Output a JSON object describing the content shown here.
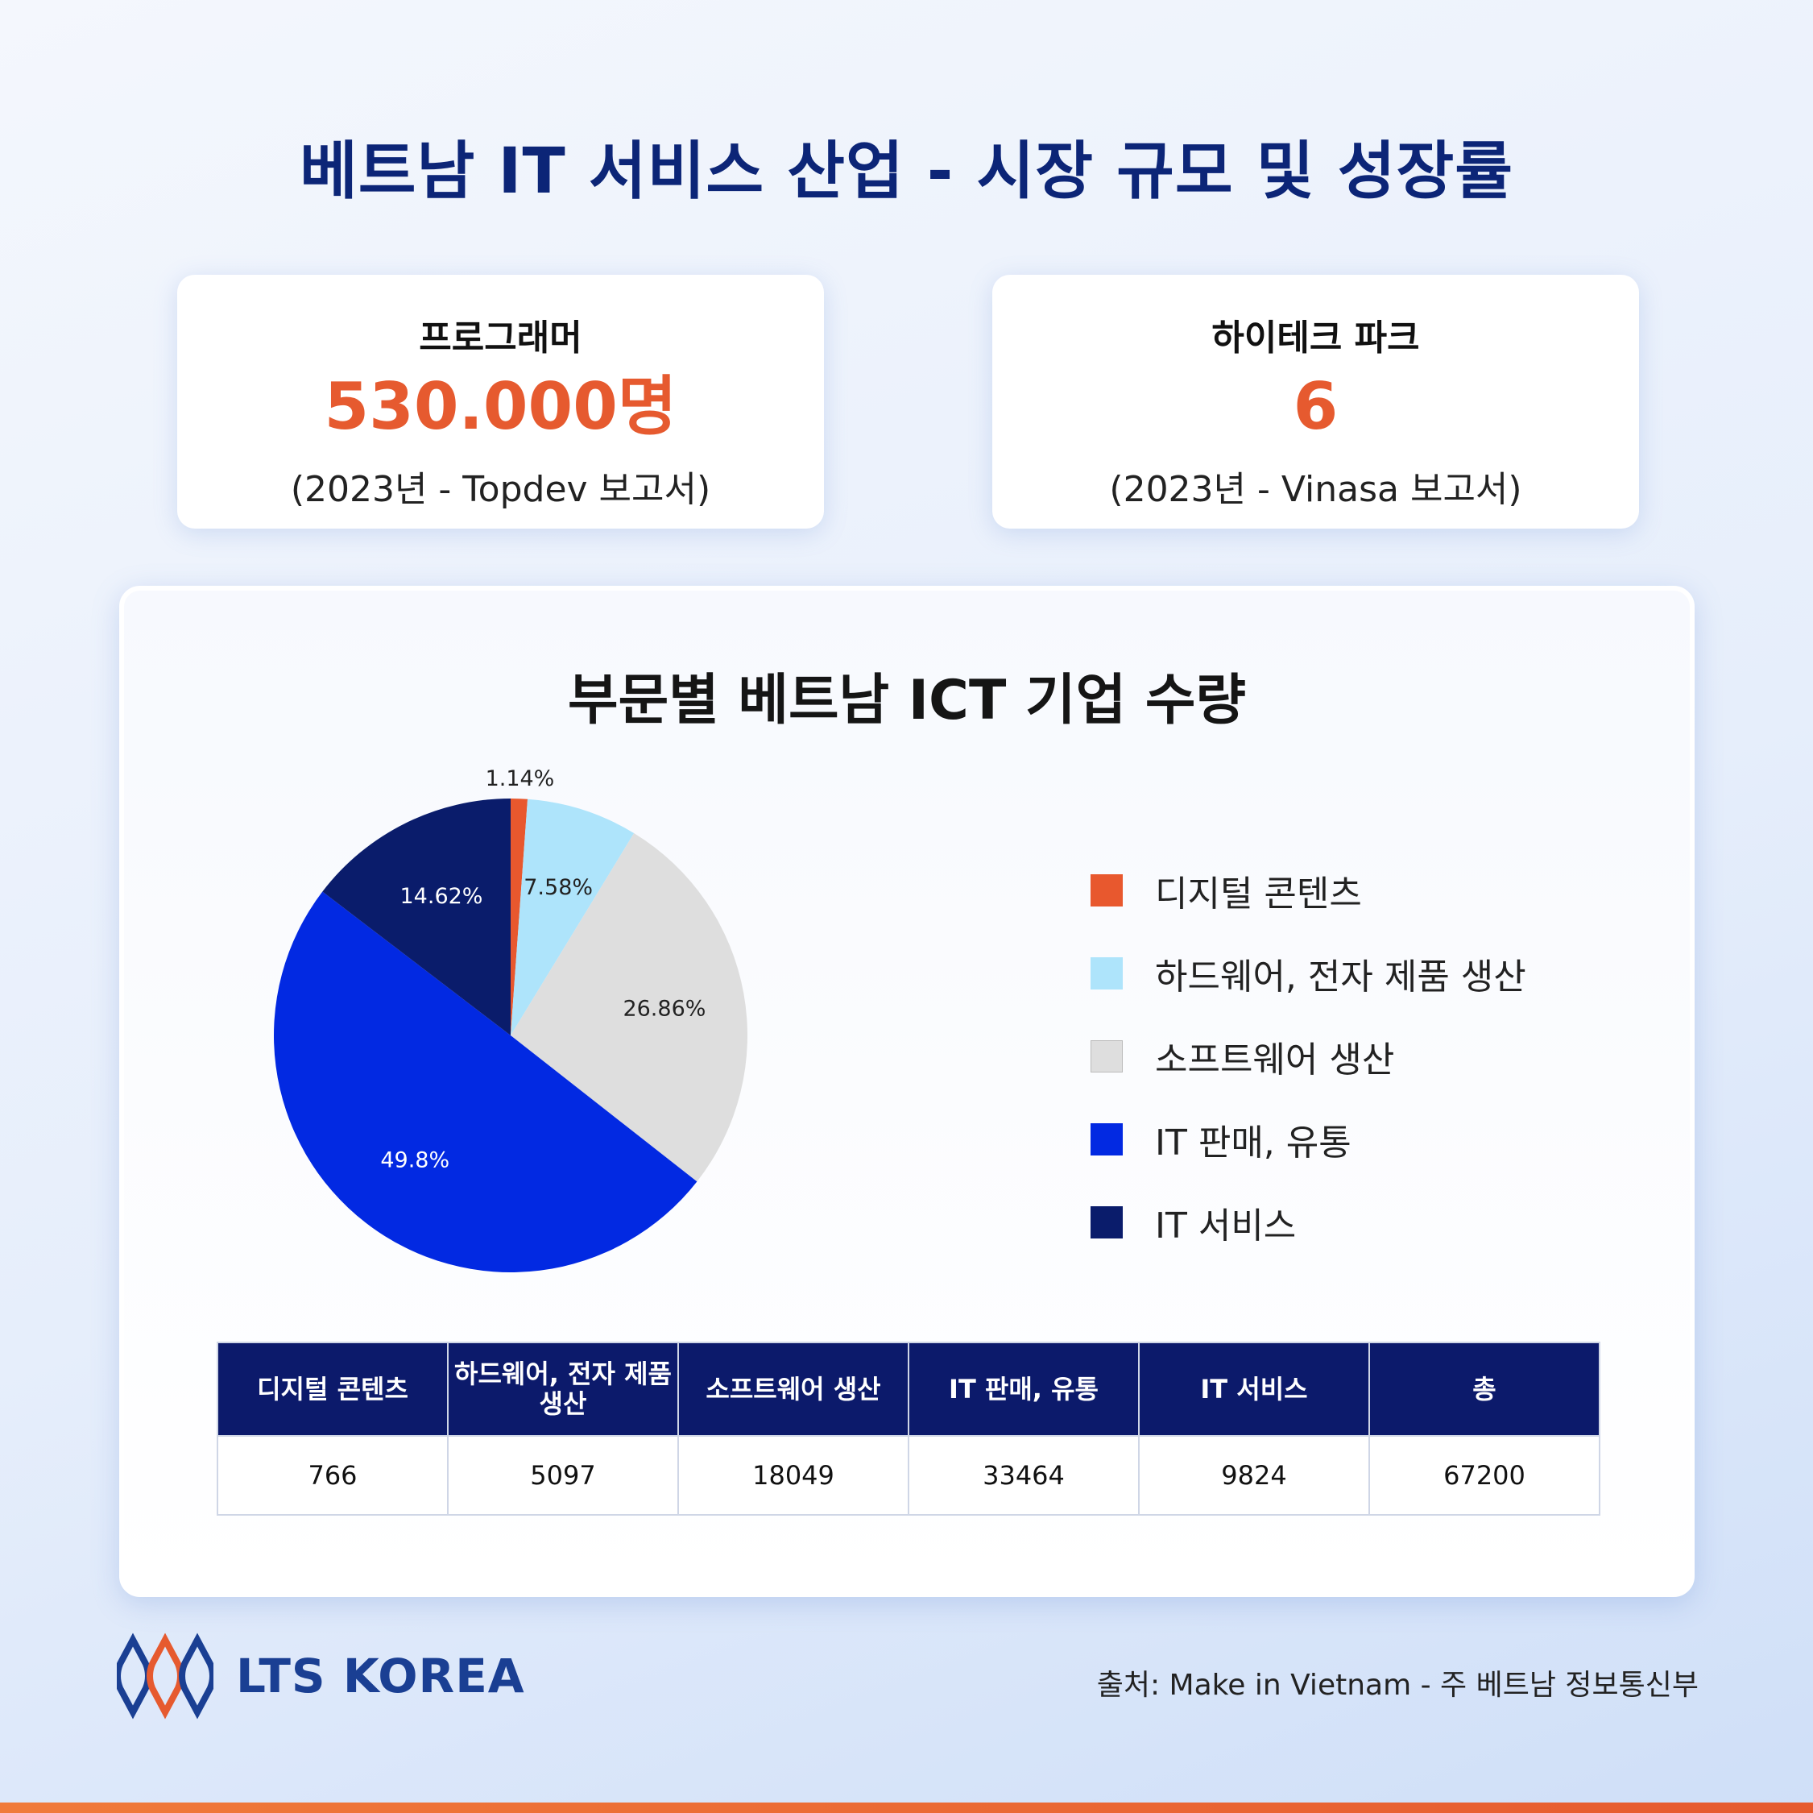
{
  "title": "베트남 IT 서비스 산업 - 시장 규모 및 성장률",
  "stats": [
    {
      "label": "프로그래머",
      "value": "530.000명",
      "note": "(2023년 - Topdev 보고서)"
    },
    {
      "label": "하이테크 파크",
      "value": "6",
      "note": "(2023년 - Vinasa 보고서)"
    }
  ],
  "colors": {
    "accent": "#e65a2f",
    "navy": "#0c2577"
  },
  "chart_data": {
    "type": "pie",
    "title": "부문별 베트남 ICT 기업 수량",
    "categories": [
      "디지털 콘텐츠",
      "하드웨어, 전자 제품 생산",
      "소프트웨어 생산",
      "IT 판매, 유통",
      "IT 서비스"
    ],
    "values": [
      1.14,
      7.58,
      26.86,
      49.8,
      14.62
    ],
    "labels": [
      "1.14%",
      "7.58%",
      "26.86%",
      "49.8%",
      "14.62%"
    ],
    "colors": [
      "#e8582e",
      "#aee4fb",
      "#dedede",
      "#0229e2",
      "#0a1c6b"
    ],
    "legend_position": "right"
  },
  "table": {
    "headers": [
      "디지털 콘텐츠",
      "하드웨어, 전자 제품 생산",
      "소프트웨어 생산",
      "IT 판매, 유통",
      "IT 서비스",
      "총"
    ],
    "values": [
      "766",
      "5097",
      "18049",
      "33464",
      "9824",
      "67200"
    ]
  },
  "logo_text": "LTS KOREA",
  "source": "출처: Make in Vietnam - 주 베트남 정보통신부"
}
